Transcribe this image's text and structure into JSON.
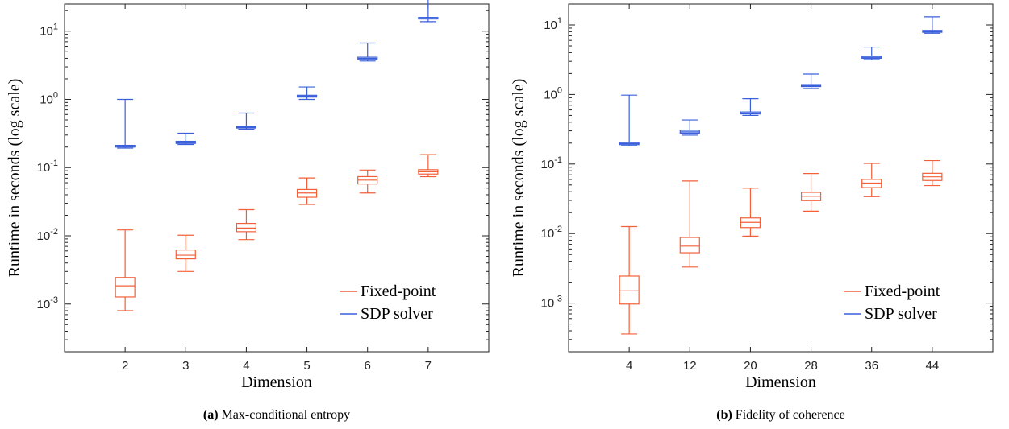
{
  "chart_data": [
    {
      "type": "box",
      "caption_label": "(a)",
      "caption_text": "Max-conditional entropy",
      "xlabel": "Dimension",
      "ylabel": "Runtime in seconds (log scale)",
      "yscale": "log",
      "ylim": [
        0.0002,
        25
      ],
      "y_ticks": [
        {
          "value": 0.001,
          "base": "10",
          "exp": "-3"
        },
        {
          "value": 0.01,
          "base": "10",
          "exp": "-2"
        },
        {
          "value": 0.1,
          "base": "10",
          "exp": "-1"
        },
        {
          "value": 1,
          "base": "10",
          "exp": "0"
        },
        {
          "value": 10,
          "base": "10",
          "exp": "1"
        }
      ],
      "categories": [
        "2",
        "3",
        "4",
        "5",
        "6",
        "7"
      ],
      "legend": {
        "position": "bottom-right"
      },
      "grid": false,
      "series": [
        {
          "name": "Fixed-point",
          "color": "#f2603a",
          "boxes": [
            {
              "min": 0.0008,
              "q1": 0.00127,
              "median": 0.00185,
              "q3": 0.00245,
              "max": 0.0122
            },
            {
              "min": 0.003,
              "q1": 0.0046,
              "median": 0.0052,
              "q3": 0.0062,
              "max": 0.0102
            },
            {
              "min": 0.0088,
              "q1": 0.0115,
              "median": 0.013,
              "q3": 0.0152,
              "max": 0.0242
            },
            {
              "min": 0.0288,
              "q1": 0.0368,
              "median": 0.0425,
              "q3": 0.0478,
              "max": 0.0705
            },
            {
              "min": 0.0425,
              "q1": 0.0575,
              "median": 0.0655,
              "q3": 0.0738,
              "max": 0.092
            },
            {
              "min": 0.0735,
              "q1": 0.0805,
              "median": 0.0868,
              "q3": 0.0932,
              "max": 0.155
            }
          ]
        },
        {
          "name": "SDP solver",
          "color": "#3a5fdb",
          "boxes": [
            {
              "min": 0.193,
              "q1": 0.2,
              "median": 0.205,
              "q3": 0.212,
              "max": 1.0
            },
            {
              "min": 0.218,
              "q1": 0.226,
              "median": 0.232,
              "q3": 0.243,
              "max": 0.32
            },
            {
              "min": 0.365,
              "q1": 0.38,
              "median": 0.39,
              "q3": 0.403,
              "max": 0.63
            },
            {
              "min": 1.0,
              "q1": 1.08,
              "median": 1.11,
              "q3": 1.15,
              "max": 1.52
            },
            {
              "min": 3.65,
              "q1": 3.85,
              "median": 3.98,
              "q3": 4.15,
              "max": 6.7
            },
            {
              "min": 13.8,
              "q1": 15.1,
              "median": 15.4,
              "q3": 15.9,
              "max": 31.0
            }
          ]
        }
      ]
    },
    {
      "type": "box",
      "caption_label": "(b)",
      "caption_text": "Fidelity of coherence",
      "xlabel": "Dimension",
      "ylabel": "Runtime in seconds (log scale)",
      "yscale": "log",
      "ylim": [
        0.0002,
        20
      ],
      "y_ticks": [
        {
          "value": 0.001,
          "base": "10",
          "exp": "-3"
        },
        {
          "value": 0.01,
          "base": "10",
          "exp": "-2"
        },
        {
          "value": 0.1,
          "base": "10",
          "exp": "-1"
        },
        {
          "value": 1,
          "base": "10",
          "exp": "0"
        },
        {
          "value": 10,
          "base": "10",
          "exp": "1"
        }
      ],
      "categories": [
        "4",
        "12",
        "20",
        "28",
        "36",
        "44"
      ],
      "legend": {
        "position": "bottom-right"
      },
      "grid": false,
      "series": [
        {
          "name": "Fixed-point",
          "color": "#f2603a",
          "boxes": [
            {
              "min": 0.00036,
              "q1": 0.00097,
              "median": 0.0015,
              "q3": 0.00245,
              "max": 0.0126
            },
            {
              "min": 0.0033,
              "q1": 0.0053,
              "median": 0.0066,
              "q3": 0.0088,
              "max": 0.057
            },
            {
              "min": 0.0092,
              "q1": 0.0122,
              "median": 0.0145,
              "q3": 0.0168,
              "max": 0.045
            },
            {
              "min": 0.021,
              "q1": 0.0298,
              "median": 0.0345,
              "q3": 0.0392,
              "max": 0.073
            },
            {
              "min": 0.034,
              "q1": 0.0458,
              "median": 0.0532,
              "q3": 0.0602,
              "max": 0.102
            },
            {
              "min": 0.049,
              "q1": 0.058,
              "median": 0.0655,
              "q3": 0.0735,
              "max": 0.112
            }
          ]
        },
        {
          "name": "SDP solver",
          "color": "#3a5fdb",
          "boxes": [
            {
              "min": 0.183,
              "q1": 0.19,
              "median": 0.196,
              "q3": 0.203,
              "max": 0.98
            },
            {
              "min": 0.26,
              "q1": 0.278,
              "median": 0.29,
              "q3": 0.305,
              "max": 0.43
            },
            {
              "min": 0.5,
              "q1": 0.525,
              "median": 0.538,
              "q3": 0.56,
              "max": 0.87
            },
            {
              "min": 1.22,
              "q1": 1.3,
              "median": 1.34,
              "q3": 1.39,
              "max": 1.97
            },
            {
              "min": 3.18,
              "q1": 3.32,
              "median": 3.42,
              "q3": 3.55,
              "max": 4.8
            },
            {
              "min": 7.6,
              "q1": 7.85,
              "median": 8.05,
              "q3": 8.35,
              "max": 13.1
            }
          ]
        }
      ]
    }
  ]
}
